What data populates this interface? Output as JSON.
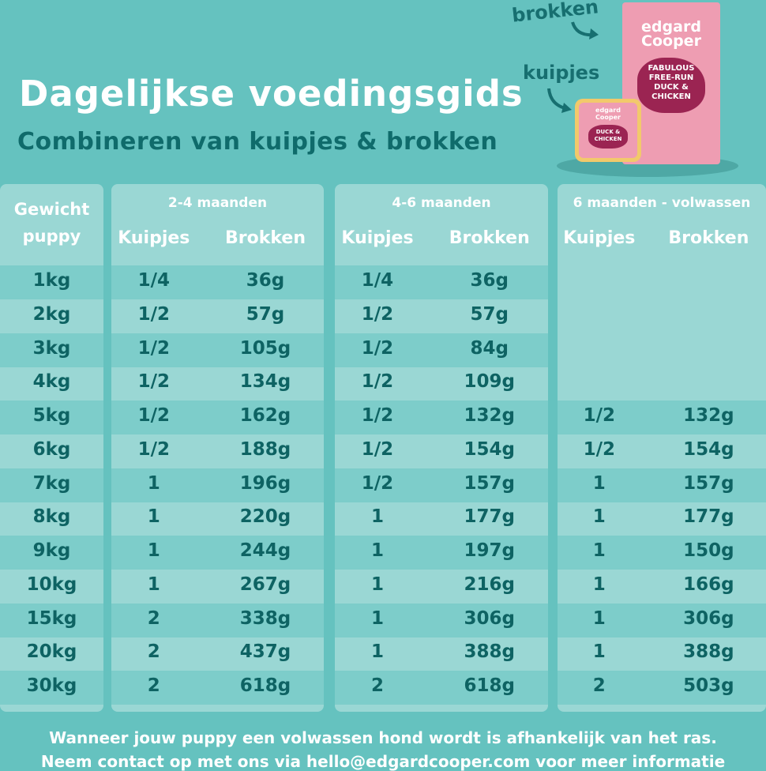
{
  "header": {
    "title": "Dagelijkse voedingsgids",
    "subtitle": "Combineren van kuipjes & brokken"
  },
  "product": {
    "label_dry": "brokken",
    "label_wet": "kuipjes",
    "brand": "edgard Cooper",
    "bag_text": "FABULOUS FREE-RUN DUCK & CHICKEN",
    "tray_text": "DUCK & CHICKEN"
  },
  "colors": {
    "background": "#65c2bf",
    "cell_light": "#9ad7d4",
    "cell_dark": "#7dcdca",
    "text_dark": "#0e6363",
    "bag_pink": "#ee9db2",
    "duck_magenta": "#9b2452"
  },
  "table": {
    "weight_header": [
      "Gewicht",
      "puppy"
    ],
    "groups": [
      {
        "label": "2-4 maanden",
        "cols": [
          "Kuipjes",
          "Brokken"
        ]
      },
      {
        "label": "4-6 maanden",
        "cols": [
          "Kuipjes",
          "Brokken"
        ]
      },
      {
        "label": "6 maanden - volwassen",
        "cols": [
          "Kuipjes",
          "Brokken"
        ]
      }
    ],
    "rows": [
      [
        "1kg",
        "1/4",
        "36g",
        "1/4",
        "36g",
        "",
        ""
      ],
      [
        "2kg",
        "1/2",
        "57g",
        "1/2",
        "57g",
        "",
        ""
      ],
      [
        "3kg",
        "1/2",
        "105g",
        "1/2",
        "84g",
        "",
        ""
      ],
      [
        "4kg",
        "1/2",
        "134g",
        "1/2",
        "109g",
        "",
        ""
      ],
      [
        "5kg",
        "1/2",
        "162g",
        "1/2",
        "132g",
        "1/2",
        "132g"
      ],
      [
        "6kg",
        "1/2",
        "188g",
        "1/2",
        "154g",
        "1/2",
        "154g"
      ],
      [
        "7kg",
        "1",
        "196g",
        "1/2",
        "157g",
        "1",
        "157g"
      ],
      [
        "8kg",
        "1",
        "220g",
        "1",
        "177g",
        "1",
        "177g"
      ],
      [
        "9kg",
        "1",
        "244g",
        "1",
        "197g",
        "1",
        "150g"
      ],
      [
        "10kg",
        "1",
        "267g",
        "1",
        "216g",
        "1",
        "166g"
      ],
      [
        "15kg",
        "2",
        "338g",
        "1",
        "306g",
        "1",
        "306g"
      ],
      [
        "20kg",
        "2",
        "437g",
        "1",
        "388g",
        "1",
        "388g"
      ],
      [
        "30kg",
        "2",
        "618g",
        "2",
        "618g",
        "2",
        "503g"
      ]
    ]
  },
  "footer": {
    "line1": "Wanneer jouw puppy een volwassen hond wordt is afhankelijk van het ras.",
    "line2": "Neem contact op met ons via hello@edgardcooper.com voor meer informatie"
  }
}
